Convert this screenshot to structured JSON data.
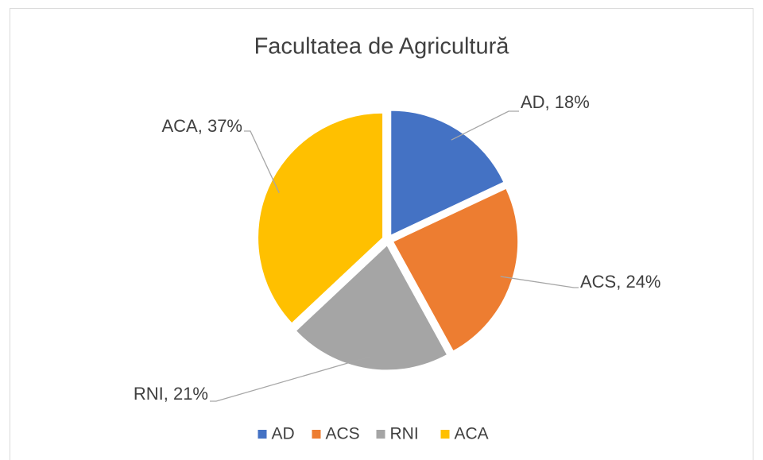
{
  "chart_data": {
    "type": "pie",
    "title": "Facultatea de Agricultură",
    "categories": [
      "AD",
      "ACS",
      "RNI",
      "ACA"
    ],
    "values": [
      18,
      24,
      21,
      37
    ],
    "value_labels": [
      "AD, 18%",
      "ACS, 24%",
      "RNI, 21%",
      "ACA, 37%"
    ],
    "colors": [
      "#4472c4",
      "#ed7d31",
      "#a5a5a5",
      "#ffc000"
    ],
    "legend": "bottom"
  }
}
